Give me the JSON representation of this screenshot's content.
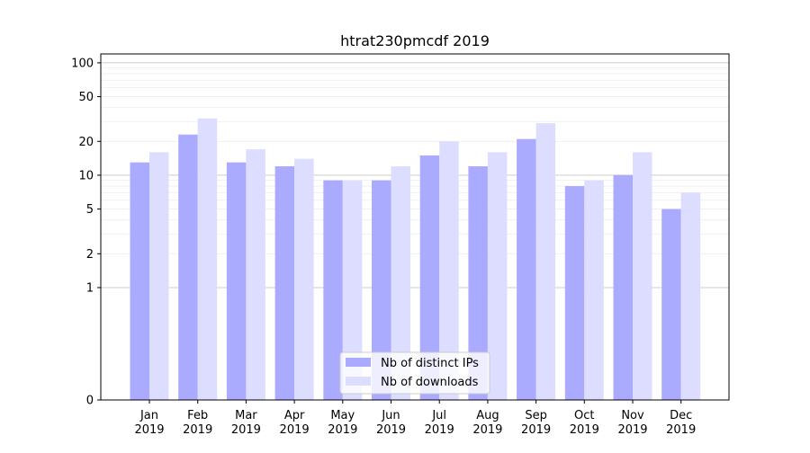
{
  "chart_data": {
    "type": "bar",
    "title": "htrat230pmcdf 2019",
    "xlabel": "",
    "ylabel": "",
    "yscale": "symlog",
    "ylim": [
      0,
      120
    ],
    "yticks": [
      0,
      1,
      2,
      5,
      10,
      20,
      50,
      100
    ],
    "grid": true,
    "legend_position": "bottom-center",
    "categories": [
      "Jan\n2019",
      "Feb\n2019",
      "Mar\n2019",
      "Apr\n2019",
      "May\n2019",
      "Jun\n2019",
      "Jul\n2019",
      "Aug\n2019",
      "Sep\n2019",
      "Oct\n2019",
      "Nov\n2019",
      "Dec\n2019"
    ],
    "series": [
      {
        "name": "Nb of distinct IPs",
        "color": "#aaaaff",
        "values": [
          13,
          23,
          13,
          12,
          9,
          9,
          15,
          12,
          21,
          8,
          10,
          5
        ]
      },
      {
        "name": "Nb of downloads",
        "color": "#ddddff",
        "values": [
          16,
          32,
          17,
          14,
          9,
          12,
          20,
          16,
          29,
          9,
          16,
          7
        ]
      }
    ]
  }
}
